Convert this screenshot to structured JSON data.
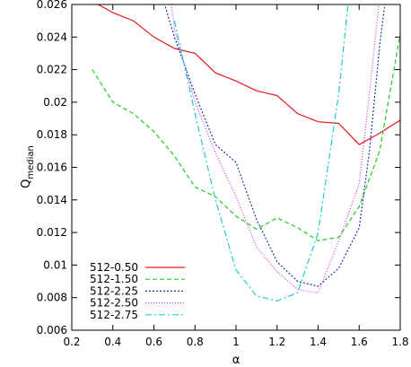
{
  "chart_data": {
    "type": "line",
    "title": "",
    "xlabel": "α",
    "ylabel_main": "Q",
    "ylabel_sub": "median",
    "xlim": [
      0.2,
      1.8
    ],
    "ylim": [
      0.006,
      0.026
    ],
    "xticks": [
      0.2,
      0.4,
      0.6,
      0.8,
      1.0,
      1.2,
      1.4,
      1.6,
      1.8
    ],
    "xtick_labels": [
      "0.2",
      "0.4",
      "0.6",
      "0.8",
      "1",
      "1.2",
      "1.4",
      "1.6",
      "1.8"
    ],
    "yticks": [
      0.006,
      0.008,
      0.01,
      0.012,
      0.014,
      0.016,
      0.018,
      0.02,
      0.022,
      0.024,
      0.026
    ],
    "ytick_labels": [
      "0.006",
      "0.008",
      "0.01",
      "0.012",
      "0.014",
      "0.016",
      "0.018",
      "0.02",
      "0.022",
      "0.024",
      "0.026"
    ],
    "grid": false,
    "legend_position": "bottom-left",
    "series": [
      {
        "name": "512-0.50",
        "color": "#e41a1c",
        "dash": "solid",
        "x": [
          0.2,
          0.3,
          0.4,
          0.5,
          0.6,
          0.7,
          0.8,
          0.9,
          1.0,
          1.1,
          1.2,
          1.3,
          1.4,
          1.5,
          1.6,
          1.7,
          1.8
        ],
        "y": [
          0.0272,
          0.0262,
          0.0255,
          0.025,
          0.024,
          0.0233,
          0.023,
          0.0218,
          0.0213,
          0.0207,
          0.0204,
          0.0193,
          0.0188,
          0.0187,
          0.0174,
          0.0181,
          0.0189
        ]
      },
      {
        "name": "512-1.50",
        "color": "#22cc22",
        "dash": "dashed",
        "x": [
          0.3,
          0.4,
          0.5,
          0.6,
          0.7,
          0.8,
          0.9,
          1.0,
          1.1,
          1.2,
          1.3,
          1.4,
          1.5,
          1.6,
          1.7,
          1.8
        ],
        "y": [
          0.022,
          0.02,
          0.0193,
          0.0182,
          0.0167,
          0.0148,
          0.0142,
          0.013,
          0.0122,
          0.0129,
          0.0123,
          0.0115,
          0.0117,
          0.0136,
          0.017,
          0.0242
        ]
      },
      {
        "name": "512-2.25",
        "color": "#2233aa",
        "dash": "dotted-short",
        "x": [
          0.64,
          0.7,
          0.8,
          0.9,
          1.0,
          1.1,
          1.2,
          1.3,
          1.4,
          1.5,
          1.6,
          1.65,
          1.7,
          1.73
        ],
        "y": [
          0.0265,
          0.024,
          0.0205,
          0.0174,
          0.0163,
          0.0128,
          0.0102,
          0.009,
          0.0087,
          0.0098,
          0.0123,
          0.017,
          0.0235,
          0.0265
        ]
      },
      {
        "name": "512-2.50",
        "color": "#dd33dd",
        "dash": "dotted",
        "x": [
          0.68,
          0.7,
          0.8,
          0.9,
          1.0,
          1.1,
          1.2,
          1.3,
          1.4,
          1.5,
          1.6,
          1.65,
          1.7
        ],
        "y": [
          0.0265,
          0.0245,
          0.02,
          0.0169,
          0.0142,
          0.0111,
          0.0096,
          0.0085,
          0.0083,
          0.0115,
          0.015,
          0.0205,
          0.0265
        ]
      },
      {
        "name": "512-2.75",
        "color": "#22cccc",
        "dash": "dashdot",
        "x": [
          0.7,
          0.8,
          0.9,
          1.0,
          1.1,
          1.2,
          1.3,
          1.4,
          1.5,
          1.55
        ],
        "y": [
          0.025,
          0.0193,
          0.014,
          0.0097,
          0.0081,
          0.0078,
          0.0083,
          0.012,
          0.0205,
          0.0265
        ]
      }
    ]
  }
}
